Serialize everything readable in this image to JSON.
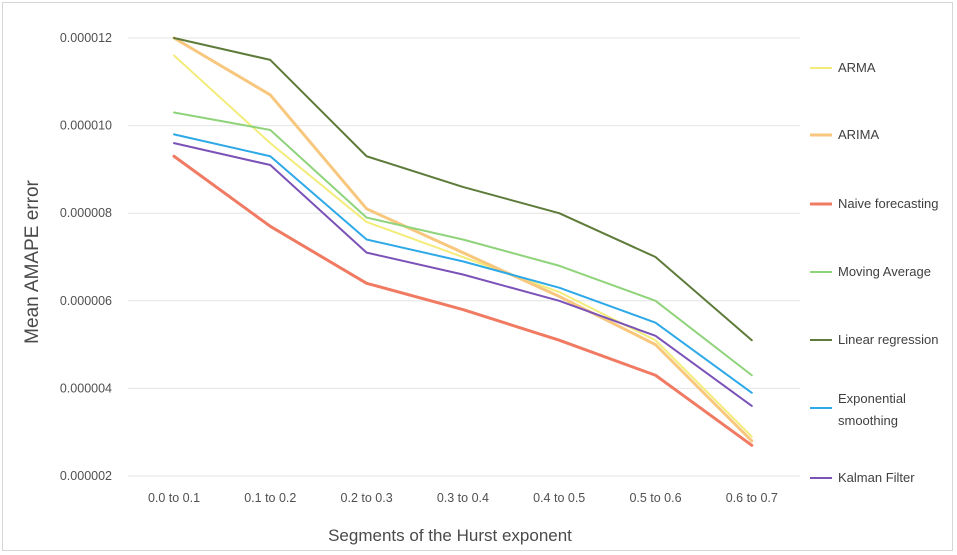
{
  "chart_data": {
    "type": "line",
    "title": "",
    "xlabel": "Segments of the Hurst exponent",
    "ylabel": "Mean AMAPE error",
    "categories": [
      "0.0 to 0.1",
      "0.1 to 0.2",
      "0.2 to 0.3",
      "0.3 to 0.4",
      "0.4 to 0.5",
      "0.5 to 0.6",
      "0.6 to 0.7"
    ],
    "ylim": [
      2e-06,
      1.2e-05
    ],
    "yticks": [
      2e-06,
      4e-06,
      6e-06,
      8e-06,
      1e-05,
      1.2e-05
    ],
    "ytick_labels": [
      "0.000002",
      "0.000004",
      "0.000006",
      "0.000008",
      "0.000010",
      "0.000012"
    ],
    "grid": true,
    "legend_position": "right",
    "series": [
      {
        "name": "ARMA",
        "color": "#f3ec7a",
        "values": [
          1.16e-05,
          9.6e-06,
          7.8e-06,
          7e-06,
          6.2e-06,
          5.1e-06,
          2.9e-06
        ]
      },
      {
        "name": "ARIMA",
        "color": "#f8c77e",
        "values": [
          1.2e-05,
          1.07e-05,
          8.1e-06,
          7.1e-06,
          6.1e-06,
          5e-06,
          2.8e-06
        ]
      },
      {
        "name": "Naive forecasting",
        "color": "#f07a62",
        "values": [
          9.3e-06,
          7.7e-06,
          6.4e-06,
          5.8e-06,
          5.1e-06,
          4.3e-06,
          2.7e-06
        ]
      },
      {
        "name": "Moving Average",
        "color": "#8fd37b",
        "values": [
          1.03e-05,
          9.9e-06,
          7.9e-06,
          7.4e-06,
          6.8e-06,
          6e-06,
          4.3e-06
        ]
      },
      {
        "name": "Linear regression",
        "color": "#5e7b3a",
        "values": [
          1.2e-05,
          1.15e-05,
          9.3e-06,
          8.6e-06,
          8e-06,
          7e-06,
          5.1e-06
        ]
      },
      {
        "name": "Exponential smoothing",
        "color": "#2ea9e8",
        "values": [
          9.8e-06,
          9.3e-06,
          7.4e-06,
          6.9e-06,
          6.3e-06,
          5.5e-06,
          3.9e-06
        ]
      },
      {
        "name": "Kalman Filter",
        "color": "#7b52b8",
        "values": [
          9.6e-06,
          9.1e-06,
          7.1e-06,
          6.6e-06,
          6e-06,
          5.2e-06,
          3.6e-06
        ]
      }
    ],
    "legend": {
      "entries": [
        {
          "lines": [
            "ARMA"
          ]
        },
        {
          "lines": [
            "ARIMA"
          ]
        },
        {
          "lines": [
            "Naive forecasting"
          ]
        },
        {
          "lines": [
            "Moving Average"
          ]
        },
        {
          "lines": [
            "Linear regression"
          ]
        },
        {
          "lines": [
            "Exponential",
            "smoothing"
          ]
        },
        {
          "lines": [
            "Kalman Filter"
          ]
        }
      ]
    }
  }
}
